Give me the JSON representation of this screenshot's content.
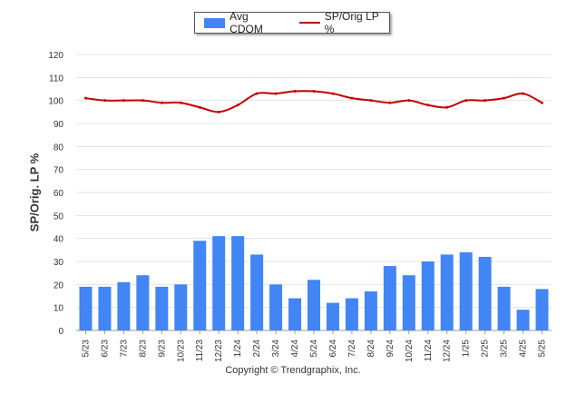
{
  "chart_data": {
    "type": "bar",
    "title": "",
    "xlabel": "",
    "ylabel": "SP/Orig. LP %",
    "ylim": [
      0,
      120
    ],
    "yticks": [
      0,
      10,
      20,
      30,
      40,
      50,
      60,
      70,
      80,
      90,
      100,
      110,
      120
    ],
    "grid": true,
    "legend_position": "top-center",
    "categories": [
      "5/23",
      "6/23",
      "7/23",
      "8/23",
      "9/23",
      "10/23",
      "11/23",
      "12/23",
      "1/24",
      "2/24",
      "3/24",
      "4/24",
      "5/24",
      "6/24",
      "7/24",
      "8/24",
      "9/24",
      "10/24",
      "11/24",
      "12/24",
      "1/25",
      "2/25",
      "3/25",
      "4/25",
      "5/25"
    ],
    "series": [
      {
        "name": "Avg CDOM",
        "kind": "bar",
        "color": "#4285f4",
        "values": [
          19,
          19,
          21,
          24,
          19,
          20,
          39,
          41,
          41,
          33,
          20,
          14,
          22,
          12,
          14,
          17,
          28,
          24,
          30,
          33,
          34,
          32,
          19,
          9,
          18
        ]
      },
      {
        "name": "SP/Orig LP %",
        "kind": "line",
        "color": "#c00000",
        "values": [
          101,
          100,
          100,
          100,
          99,
          99,
          97,
          95,
          98,
          103,
          103,
          104,
          104,
          103,
          101,
          100,
          99,
          100,
          98,
          97,
          100,
          100,
          101,
          103,
          99
        ]
      }
    ]
  },
  "legend": {
    "bar_label": "Avg CDOM",
    "line_label": "SP/Orig LP %"
  },
  "footer": {
    "copyright": "Copyright © Trendgraphix, Inc."
  }
}
